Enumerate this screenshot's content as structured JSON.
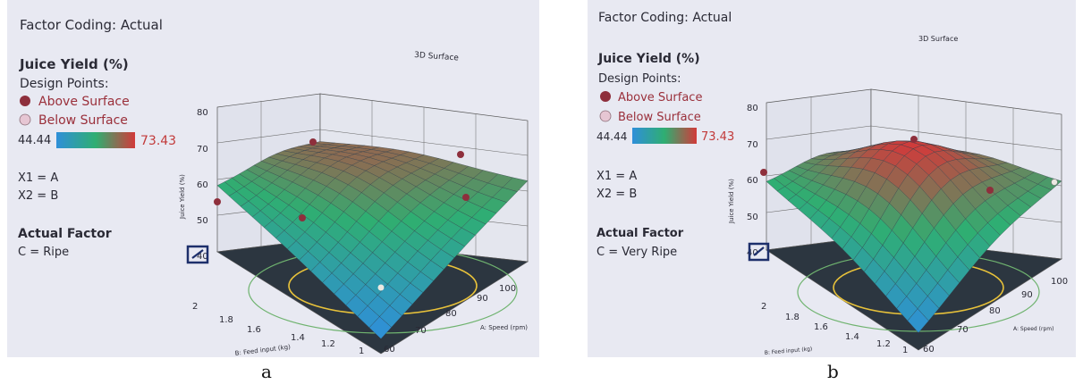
{
  "panels": [
    {
      "id": "a",
      "caption": "a",
      "factor_coding": "Factor Coding: Actual",
      "response": "Juice Yield (%)",
      "design_points": "Design Points:",
      "above": "Above Surface",
      "below": "Below Surface",
      "range_min": "44.44",
      "range_max": "73.43",
      "x1": "X1 = A",
      "x2": "X2 = B",
      "actual_factor": "Actual Factor",
      "factor_value": "C = Ripe",
      "plot_title": "3D Surface",
      "zlabel": "Juice Yield (%)",
      "xlabel": "B: Feed input (kg)",
      "ylabel": "A: Speed (rpm)"
    },
    {
      "id": "b",
      "caption": "b",
      "factor_coding": "Factor Coding: Actual",
      "response": "Juice Yield (%)",
      "design_points": "Design Points:",
      "above": "Above Surface",
      "below": "Below Surface",
      "range_min": "44.44",
      "range_max": "73.43",
      "x1": "X1 = A",
      "x2": "X2 = B",
      "actual_factor": "Actual Factor",
      "factor_value": "C = Very Ripe",
      "plot_title": "3D Surface",
      "zlabel": "Juice Yield (%)",
      "xlabel": "B: Feed input (kg)",
      "ylabel": "A: Speed (rpm)"
    }
  ],
  "colors": {
    "background": "#e8e9f2",
    "text": "#2a2a35",
    "above_point": "#8e2f3c",
    "below_point": "#e6c6d3",
    "scale_low": "#2f8fd9",
    "scale_mid": "#2fae72",
    "scale_high": "#d23a3a"
  },
  "chart_data": [
    {
      "type": "surface",
      "title": "3D Surface",
      "factor_setting": "C = Ripe",
      "xlabel": "B: Feed input (kg)",
      "ylabel": "A: Speed (rpm)",
      "zlabel": "Juice Yield (%)",
      "x_ticks": [
        "1",
        "1.2",
        "1.4",
        "1.6",
        "1.8",
        "2"
      ],
      "y_ticks": [
        "60",
        "70",
        "80",
        "90",
        "100"
      ],
      "z_ticks": [
        "40",
        "50",
        "60",
        "70",
        "80"
      ],
      "xlim": [
        1,
        2
      ],
      "ylim": [
        60,
        100
      ],
      "zlim": [
        40,
        80
      ],
      "color_range": [
        44.44,
        73.43
      ],
      "surface_corners": {
        "B=2,A=60": 58,
        "B=2,A=100": 66,
        "B=1,A=100": 62,
        "B=1,A=60": 44
      },
      "surface_peak": {
        "B": 1.6,
        "A": 84,
        "value": 66
      }
    },
    {
      "type": "surface",
      "title": "3D Surface",
      "factor_setting": "C = Very Ripe",
      "xlabel": "B: Feed input (kg)",
      "ylabel": "A: Speed (rpm)",
      "zlabel": "Juice Yield (%)",
      "x_ticks": [
        "1",
        "1.2",
        "1.4",
        "1.6",
        "1.8",
        "2"
      ],
      "y_ticks": [
        "60",
        "70",
        "80",
        "90",
        "100"
      ],
      "z_ticks": [
        "40",
        "50",
        "60",
        "70",
        "80"
      ],
      "xlim": [
        1,
        2
      ],
      "ylim": [
        60,
        100
      ],
      "zlim": [
        40,
        80
      ],
      "color_range": [
        44.44,
        73.43
      ],
      "surface_corners": {
        "B=2,A=60": 58,
        "B=2,A=100": 62,
        "B=1,A=100": 60,
        "B=1,A=60": 44
      },
      "surface_peak": {
        "B": 1.5,
        "A": 82,
        "value": 73
      }
    }
  ]
}
